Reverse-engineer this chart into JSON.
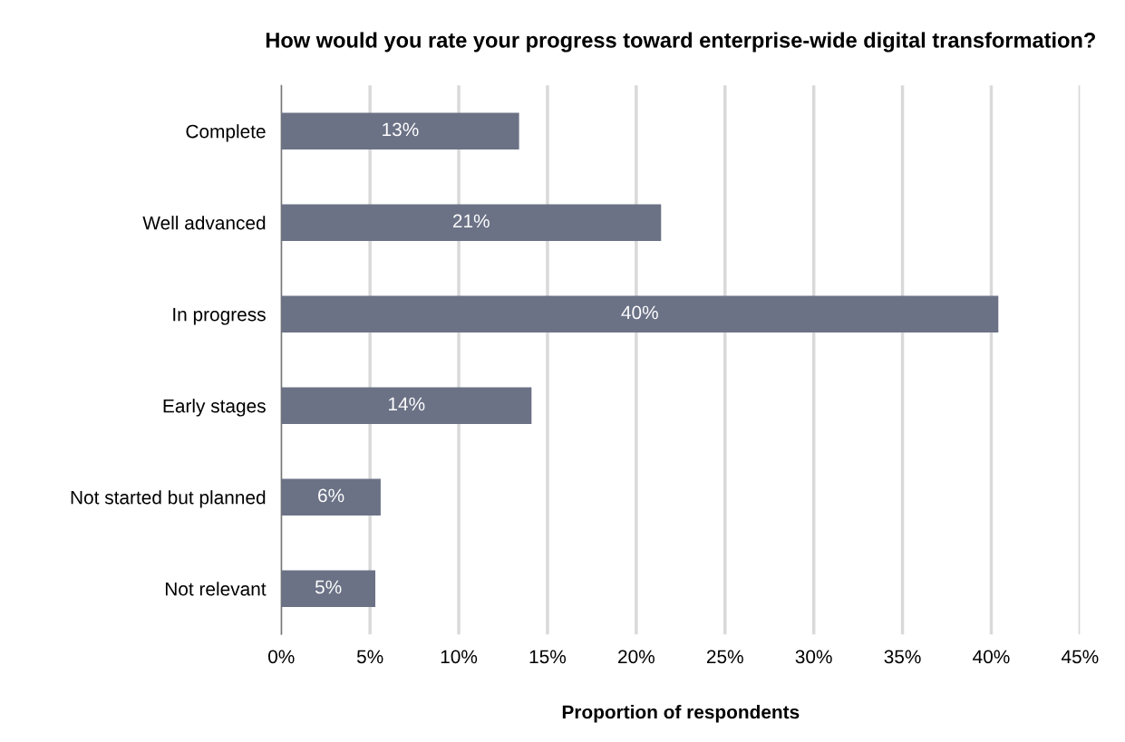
{
  "chart_data": {
    "type": "bar",
    "orientation": "horizontal",
    "title": "How would you rate your progress toward enterprise-wide digital transformation?",
    "xlabel": "Proportion of respondents",
    "categories": [
      "Complete",
      "Well advanced",
      "In progress",
      "Early stages",
      "Not started but planned",
      "Not relevant"
    ],
    "values": [
      13.4,
      21.4,
      40.4,
      14.1,
      5.6,
      5.3
    ],
    "value_labels": [
      "13%",
      "21%",
      "40%",
      "14%",
      "6%",
      "5%"
    ],
    "color": "#6b7286",
    "grid": "x",
    "xlim": [
      0,
      45
    ],
    "xticks": [
      {
        "value": 0,
        "label": "0%"
      },
      {
        "value": 5,
        "label": "5%"
      },
      {
        "value": 10,
        "label": "10%"
      },
      {
        "value": 15,
        "label": "15%"
      },
      {
        "value": 20,
        "label": "20%"
      },
      {
        "value": 25,
        "label": "25%"
      },
      {
        "value": 30,
        "label": "30%"
      },
      {
        "value": 35,
        "label": "35%"
      },
      {
        "value": 40,
        "label": "40%"
      },
      {
        "value": 45,
        "label": "45%"
      }
    ]
  }
}
